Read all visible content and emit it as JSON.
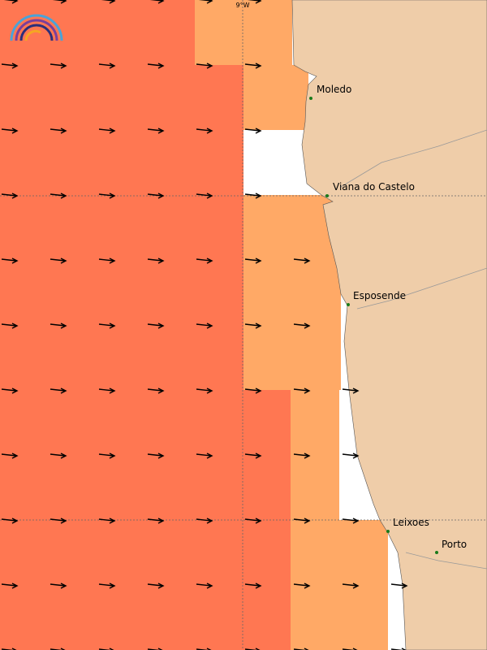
{
  "map": {
    "graticule_label": "9°W",
    "places": [
      {
        "label": "Moledo"
      },
      {
        "label": "Viana do Castelo"
      },
      {
        "label": "Esposende"
      },
      {
        "label": "Leixoes"
      },
      {
        "label": "Porto"
      }
    ]
  }
}
